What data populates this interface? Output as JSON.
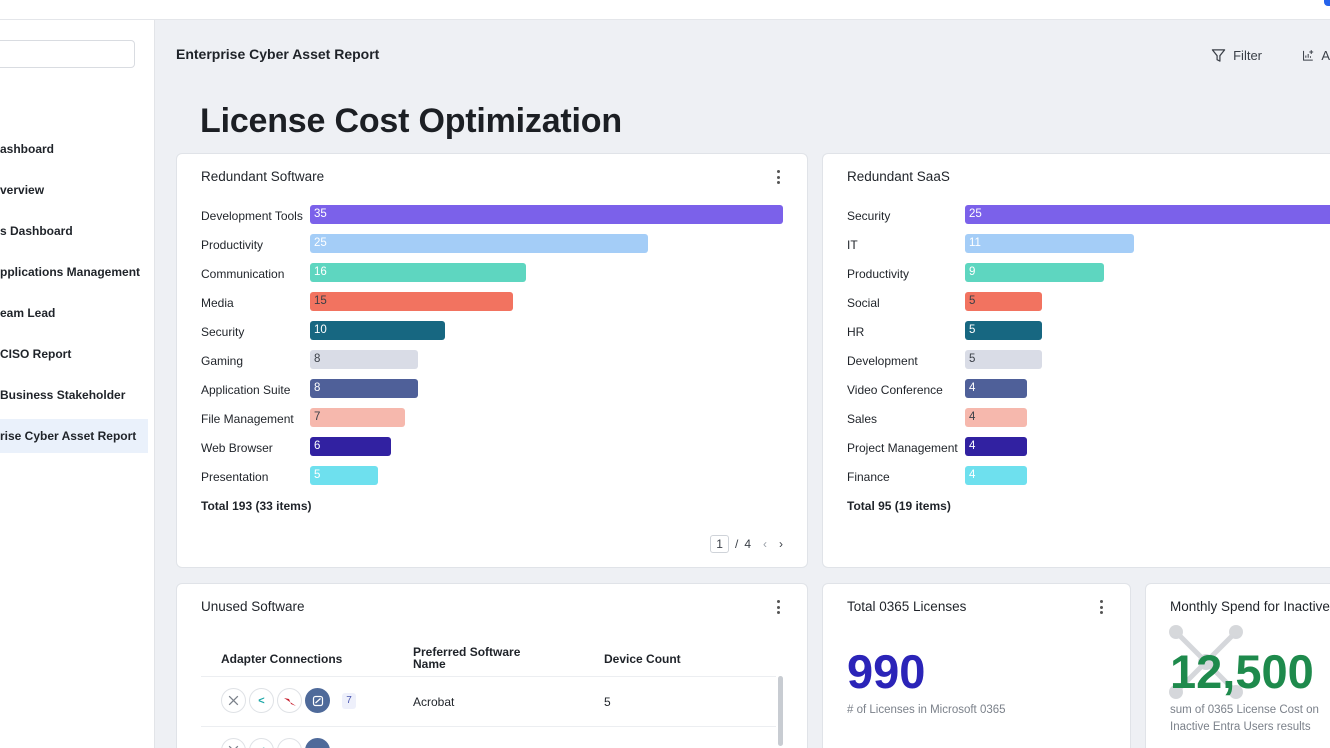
{
  "sidebar": {
    "items": [
      {
        "label": "ashboard"
      },
      {
        "label": "verview"
      },
      {
        "label": "s Dashboard"
      },
      {
        "label": "pplications Management"
      },
      {
        "label": "eam Lead"
      },
      {
        "label": "CISO Report"
      },
      {
        "label": "Business Stakeholder"
      },
      {
        "label": "rise Cyber Asset Report"
      }
    ]
  },
  "header": {
    "report_title": "Enterprise Cyber Asset Report",
    "filter_label": "Filter",
    "add_label": "A",
    "filter_icon": "filter-icon",
    "add_icon": "add-chart-icon"
  },
  "page": {
    "title": "License Cost Optimization"
  },
  "redundant_software": {
    "title": "Redundant Software",
    "total": "Total 193 (33 items)",
    "pagination": {
      "current": "1",
      "separator": "/",
      "total": "4"
    },
    "max_value": 35,
    "rows": [
      {
        "label": "Development Tools",
        "value": 35,
        "color": "#7b61ea"
      },
      {
        "label": "Productivity",
        "value": 25,
        "color": "#a4cdf7"
      },
      {
        "label": "Communication",
        "value": 16,
        "color": "#5ed6c0"
      },
      {
        "label": "Media",
        "value": 15,
        "color": "#f27360"
      },
      {
        "label": "Security",
        "value": 10,
        "color": "#176781"
      },
      {
        "label": "Gaming",
        "value": 8,
        "color": "#d9dce6"
      },
      {
        "label": "Application Suite",
        "value": 8,
        "color": "#4f6099"
      },
      {
        "label": "File Management",
        "value": 7,
        "color": "#f6b8ad"
      },
      {
        "label": "Web Browser",
        "value": 6,
        "color": "#3121a1"
      },
      {
        "label": "Presentation",
        "value": 5,
        "color": "#6ee0ee"
      }
    ]
  },
  "redundant_saas": {
    "title": "Redundant SaaS",
    "total": "Total 95 (19 items)",
    "max_value": 25,
    "rows": [
      {
        "label": "Security",
        "value": 25,
        "color": "#7b61ea"
      },
      {
        "label": "IT",
        "value": 11,
        "color": "#a4cdf7"
      },
      {
        "label": "Productivity",
        "value": 9,
        "color": "#5ed6c0"
      },
      {
        "label": "Social",
        "value": 5,
        "color": "#f27360"
      },
      {
        "label": "HR",
        "value": 5,
        "color": "#176781"
      },
      {
        "label": "Development",
        "value": 5,
        "color": "#d9dce6"
      },
      {
        "label": "Video Conference",
        "value": 4,
        "color": "#4f6099"
      },
      {
        "label": "Sales",
        "value": 4,
        "color": "#f6b8ad"
      },
      {
        "label": "Project Management",
        "value": 4,
        "color": "#3121a1"
      },
      {
        "label": "Finance",
        "value": 4,
        "color": "#6ee0ee"
      }
    ]
  },
  "unused_software": {
    "title": "Unused Software",
    "columns": [
      "Adapter Connections",
      "Preferred Software Name",
      "Device Count"
    ],
    "rows": [
      {
        "connections_count": "7",
        "name": "Acrobat",
        "device_count": "5"
      }
    ]
  },
  "total_licenses": {
    "title": "Total 0365 Licenses",
    "value": "990",
    "caption": "# of Licenses in Microsoft 0365",
    "color": "#2b24b8"
  },
  "monthly_spend": {
    "title": "Monthly Spend for Inactive",
    "value": "12,500",
    "caption_line1": "sum of 0365 License Cost on",
    "caption_line2": "Inactive Entra Users results",
    "color": "#1e8a4c"
  }
}
